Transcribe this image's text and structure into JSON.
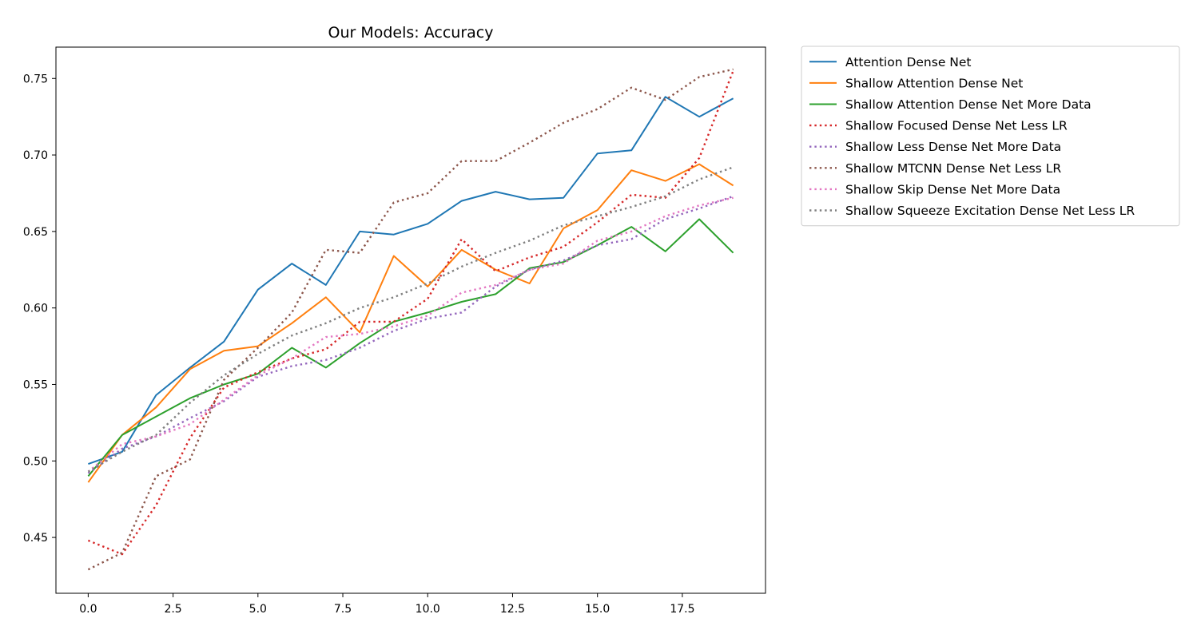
{
  "chart_data": {
    "type": "line",
    "title": "Our Models: Accuracy",
    "xlabel": "",
    "ylabel": "",
    "xlim": [
      -0.95,
      19.95
    ],
    "ylim": [
      0.4135,
      0.7705
    ],
    "xticks": [
      0.0,
      2.5,
      5.0,
      7.5,
      10.0,
      12.5,
      15.0,
      17.5
    ],
    "xtick_labels": [
      "0.0",
      "2.5",
      "5.0",
      "7.5",
      "10.0",
      "12.5",
      "15.0",
      "17.5"
    ],
    "yticks": [
      0.45,
      0.5,
      0.55,
      0.6,
      0.65,
      0.7,
      0.75
    ],
    "ytick_labels": [
      "0.45",
      "0.50",
      "0.55",
      "0.60",
      "0.65",
      "0.70",
      "0.75"
    ],
    "grid": false,
    "legend": "outside-right-top",
    "x": [
      0,
      1,
      2,
      3,
      4,
      5,
      6,
      7,
      8,
      9,
      10,
      11,
      12,
      13,
      14,
      15,
      16,
      17,
      18,
      19
    ],
    "series": [
      {
        "name": "Attention Dense Net",
        "color": "#1f77b4",
        "style": "solid",
        "values": [
          0.498,
          0.506,
          0.543,
          0.561,
          0.578,
          0.612,
          0.629,
          0.615,
          0.65,
          0.648,
          0.655,
          0.67,
          0.676,
          0.671,
          0.672,
          0.701,
          0.703,
          0.738,
          0.725,
          0.737
        ]
      },
      {
        "name": "Shallow Attention Dense Net",
        "color": "#ff7f0e",
        "style": "solid",
        "values": [
          0.486,
          0.517,
          0.535,
          0.56,
          0.572,
          0.575,
          0.59,
          0.607,
          0.584,
          0.634,
          0.614,
          0.638,
          0.625,
          0.616,
          0.652,
          0.664,
          0.69,
          0.683,
          0.694,
          0.68
        ]
      },
      {
        "name": "Shallow Attention Dense Net More Data",
        "color": "#2ca02c",
        "style": "solid",
        "values": [
          0.49,
          0.517,
          0.529,
          0.541,
          0.55,
          0.557,
          0.574,
          0.561,
          0.577,
          0.591,
          0.597,
          0.604,
          0.609,
          0.626,
          0.63,
          0.641,
          0.653,
          0.637,
          0.658,
          0.636
        ]
      },
      {
        "name": "Shallow Focused Dense Net Less LR",
        "color": "#d62728",
        "style": "dotted",
        "values": [
          0.448,
          0.439,
          0.471,
          0.515,
          0.548,
          0.558,
          0.567,
          0.573,
          0.591,
          0.591,
          0.606,
          0.645,
          0.624,
          0.633,
          0.64,
          0.656,
          0.674,
          0.672,
          0.698,
          0.755
        ]
      },
      {
        "name": "Shallow Less Dense Net More Data",
        "color": "#9467bd",
        "style": "dotted",
        "values": [
          0.492,
          0.508,
          0.516,
          0.528,
          0.539,
          0.555,
          0.562,
          0.566,
          0.574,
          0.585,
          0.593,
          0.597,
          0.614,
          0.625,
          0.631,
          0.641,
          0.645,
          0.658,
          0.665,
          0.673
        ]
      },
      {
        "name": "Shallow MTCNN Dense Net Less LR",
        "color": "#8c564b",
        "style": "dotted",
        "values": [
          0.429,
          0.44,
          0.49,
          0.501,
          0.553,
          0.574,
          0.597,
          0.638,
          0.636,
          0.669,
          0.675,
          0.696,
          0.696,
          0.708,
          0.721,
          0.73,
          0.744,
          0.736,
          0.751,
          0.756
        ]
      },
      {
        "name": "Shallow Skip Dense Net More Data",
        "color": "#e377c2",
        "style": "dotted",
        "values": [
          0.493,
          0.511,
          0.516,
          0.524,
          0.54,
          0.556,
          0.567,
          0.581,
          0.583,
          0.588,
          0.595,
          0.61,
          0.615,
          0.625,
          0.629,
          0.644,
          0.65,
          0.66,
          0.667,
          0.672
        ]
      },
      {
        "name": "Shallow Squeeze Excitation Dense Net Less LR",
        "color": "#7f7f7f",
        "style": "dotted",
        "values": [
          0.493,
          0.506,
          0.517,
          0.538,
          0.556,
          0.57,
          0.582,
          0.59,
          0.6,
          0.607,
          0.616,
          0.627,
          0.636,
          0.644,
          0.654,
          0.66,
          0.666,
          0.673,
          0.684,
          0.692
        ]
      }
    ]
  }
}
